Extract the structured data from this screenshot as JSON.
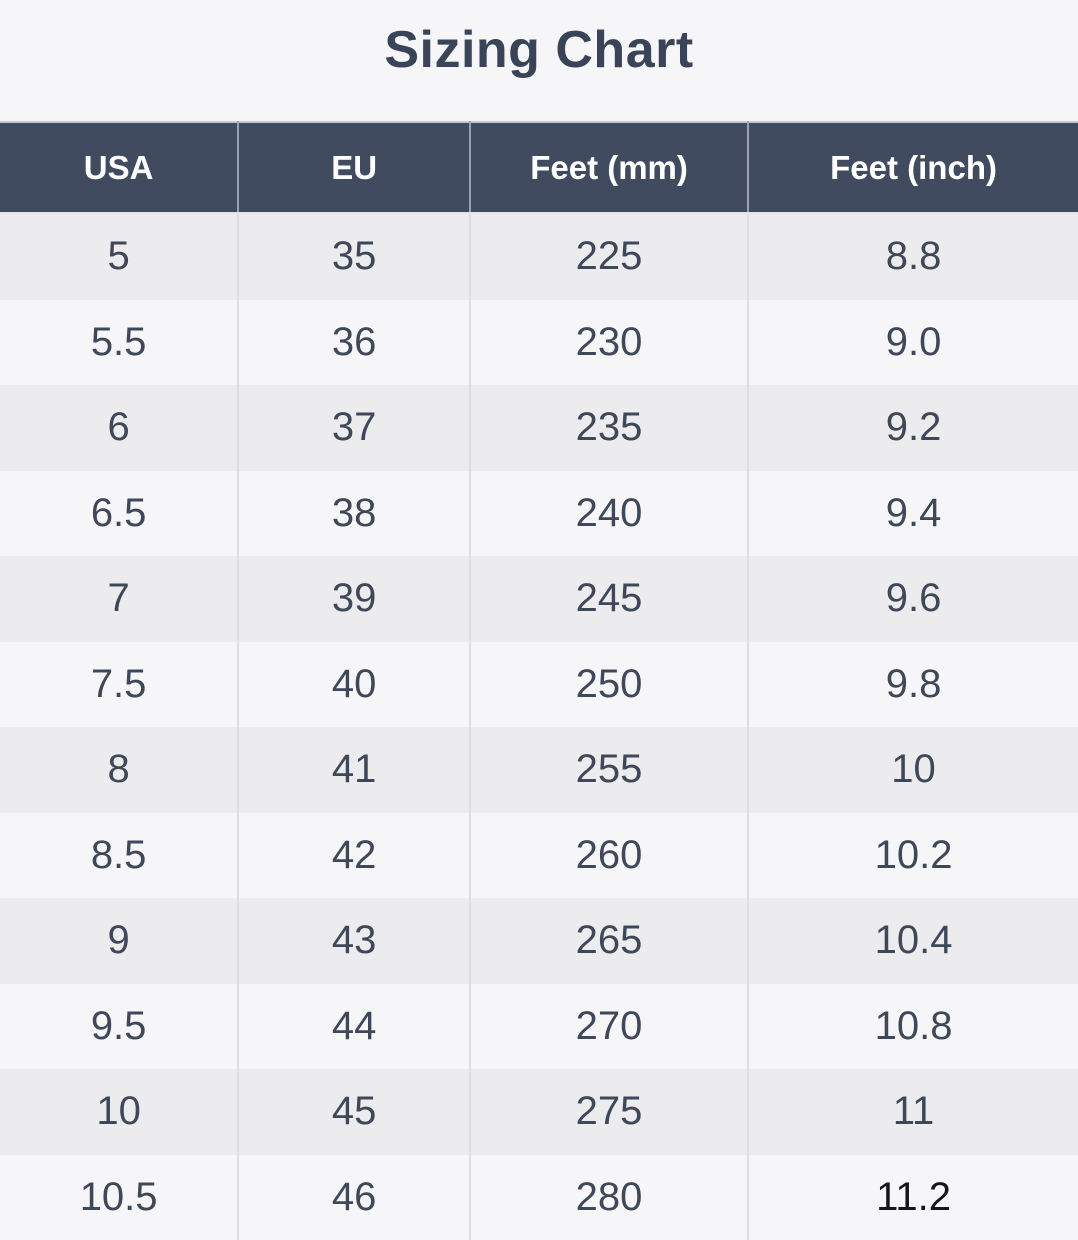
{
  "title": "Sizing Chart",
  "colors": {
    "page_bg": "#f6f6f9",
    "header_bg": "#404b5f",
    "header_text": "#ffffff",
    "row_odd_bg": "#ececef",
    "row_even_bg": "#f6f6f9",
    "cell_text": "#3e4859",
    "title_text": "#3a4458",
    "divider_body": "#dcdee3",
    "divider_header": "#9aa1af",
    "special_cell_text": "#161616"
  },
  "table": {
    "columns": [
      "USA",
      "EU",
      "Feet (mm)",
      "Feet (inch)"
    ],
    "column_widths_percent": [
      22.1,
      21.5,
      25.8,
      30.6
    ],
    "rows": [
      [
        "5",
        "35",
        "225",
        "8.8"
      ],
      [
        "5.5",
        "36",
        "230",
        "9.0"
      ],
      [
        "6",
        "37",
        "235",
        "9.2"
      ],
      [
        "6.5",
        "38",
        "240",
        "9.4"
      ],
      [
        "7",
        "39",
        "245",
        "9.6"
      ],
      [
        "7.5",
        "40",
        "250",
        "9.8"
      ],
      [
        "8",
        "41",
        "255",
        "10"
      ],
      [
        "8.5",
        "42",
        "260",
        "10.2"
      ],
      [
        "9",
        "43",
        "265",
        "10.4"
      ],
      [
        "9.5",
        "44",
        "270",
        "10.8"
      ],
      [
        "10",
        "45",
        "275",
        "11"
      ],
      [
        "10.5",
        "46",
        "280",
        "11.2"
      ]
    ],
    "special_cell": {
      "row": 11,
      "col": 3,
      "color": "#161616"
    }
  },
  "chart_data": {
    "type": "table",
    "title": "Sizing Chart",
    "columns": [
      "USA",
      "EU",
      "Feet (mm)",
      "Feet (inch)"
    ],
    "rows": [
      [
        5,
        35,
        225,
        8.8
      ],
      [
        5.5,
        36,
        230,
        9.0
      ],
      [
        6,
        37,
        235,
        9.2
      ],
      [
        6.5,
        38,
        240,
        9.4
      ],
      [
        7,
        39,
        245,
        9.6
      ],
      [
        7.5,
        40,
        250,
        9.8
      ],
      [
        8,
        41,
        255,
        10
      ],
      [
        8.5,
        42,
        260,
        10.2
      ],
      [
        9,
        43,
        265,
        10.4
      ],
      [
        9.5,
        44,
        270,
        10.8
      ],
      [
        10,
        45,
        275,
        11
      ],
      [
        10.5,
        46,
        280,
        11.2
      ]
    ]
  }
}
